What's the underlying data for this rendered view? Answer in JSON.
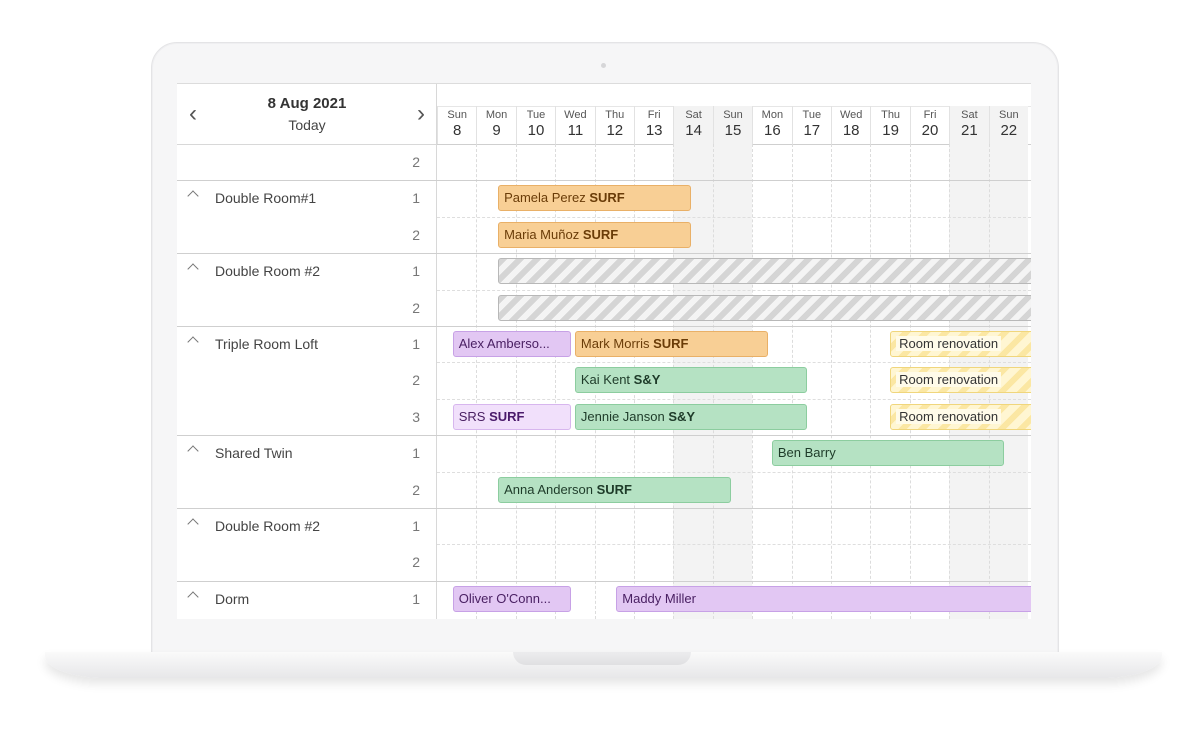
{
  "header": {
    "date": "8 Aug 2021",
    "today": "Today",
    "prev": "‹",
    "next": "›"
  },
  "days": [
    {
      "name": "Sun",
      "num": "8",
      "weekend": false
    },
    {
      "name": "Mon",
      "num": "9",
      "weekend": false
    },
    {
      "name": "Tue",
      "num": "10",
      "weekend": false
    },
    {
      "name": "Wed",
      "num": "11",
      "weekend": false
    },
    {
      "name": "Thu",
      "num": "12",
      "weekend": false
    },
    {
      "name": "Fri",
      "num": "13",
      "weekend": false
    },
    {
      "name": "Sat",
      "num": "14",
      "weekend": true
    },
    {
      "name": "Sun",
      "num": "15",
      "weekend": true
    },
    {
      "name": "Mon",
      "num": "16",
      "weekend": false
    },
    {
      "name": "Tue",
      "num": "17",
      "weekend": false
    },
    {
      "name": "Wed",
      "num": "18",
      "weekend": false
    },
    {
      "name": "Thu",
      "num": "19",
      "weekend": false
    },
    {
      "name": "Fri",
      "num": "20",
      "weekend": false
    },
    {
      "name": "Sat",
      "num": "21",
      "weekend": true
    },
    {
      "name": "Sun",
      "num": "22",
      "weekend": true
    }
  ],
  "rows": [
    {
      "group": "",
      "num": "2",
      "first": true
    },
    {
      "group": "Double Room#1",
      "num": "1",
      "first": true
    },
    {
      "group": "",
      "num": "2",
      "first": false
    },
    {
      "group": "Double Room #2",
      "num": "1",
      "first": true
    },
    {
      "group": "",
      "num": "2",
      "first": false
    },
    {
      "group": "Triple Room Loft",
      "num": "1",
      "first": true
    },
    {
      "group": "",
      "num": "2",
      "first": false
    },
    {
      "group": "",
      "num": "3",
      "first": false
    },
    {
      "group": "Shared Twin",
      "num": "1",
      "first": true
    },
    {
      "group": "",
      "num": "2",
      "first": false
    },
    {
      "group": "Double Room #2",
      "num": "1",
      "first": true
    },
    {
      "group": "",
      "num": "2",
      "first": false
    },
    {
      "group": "Dorm",
      "num": "1",
      "first": true
    }
  ],
  "events": [
    {
      "row": 1,
      "start": 1.55,
      "end": 6.45,
      "label": "Pamela Perez ",
      "tag": "SURF",
      "color": "orange"
    },
    {
      "row": 2,
      "start": 1.55,
      "end": 6.45,
      "label": "Maria Muñoz ",
      "tag": "SURF",
      "color": "orange"
    },
    {
      "row": 3,
      "start": 1.55,
      "end": 15.2,
      "label": "",
      "tag": "",
      "color": "gray"
    },
    {
      "row": 4,
      "start": 1.55,
      "end": 15.2,
      "label": "",
      "tag": "",
      "color": "gray"
    },
    {
      "row": 5,
      "start": 0.4,
      "end": 3.4,
      "label": "Alex Amberso...",
      "tag": "",
      "color": "purple"
    },
    {
      "row": 5,
      "start": 3.5,
      "end": 8.4,
      "label": "Mark Morris ",
      "tag": "SURF",
      "color": "orange"
    },
    {
      "row": 5,
      "start": 11.5,
      "end": 15.2,
      "label": "Room renovation",
      "tag": "",
      "color": "yellow"
    },
    {
      "row": 6,
      "start": 3.5,
      "end": 9.4,
      "label": "Kai Kent ",
      "tag": "S&Y",
      "color": "green"
    },
    {
      "row": 6,
      "start": 11.5,
      "end": 15.2,
      "label": "Room renovation",
      "tag": "",
      "color": "yellow"
    },
    {
      "row": 7,
      "start": 0.4,
      "end": 3.4,
      "label": "SRS ",
      "tag": "SURF",
      "color": "lpurple"
    },
    {
      "row": 7,
      "start": 3.5,
      "end": 9.4,
      "label": "Jennie Janson ",
      "tag": "S&Y",
      "color": "green"
    },
    {
      "row": 7,
      "start": 11.5,
      "end": 15.2,
      "label": "Room renovation",
      "tag": "",
      "color": "yellow"
    },
    {
      "row": 8,
      "start": 8.5,
      "end": 14.4,
      "label": "Ben Barry",
      "tag": "",
      "color": "green"
    },
    {
      "row": 9,
      "start": 1.55,
      "end": 7.45,
      "label": "Anna Anderson ",
      "tag": "SURF",
      "color": "green"
    },
    {
      "row": 12,
      "start": 0.4,
      "end": 3.4,
      "label": "Oliver O'Conn...",
      "tag": "",
      "color": "purple"
    },
    {
      "row": 12,
      "start": 4.55,
      "end": 15.2,
      "label": "Maddy Miller",
      "tag": "",
      "color": "purple"
    }
  ]
}
